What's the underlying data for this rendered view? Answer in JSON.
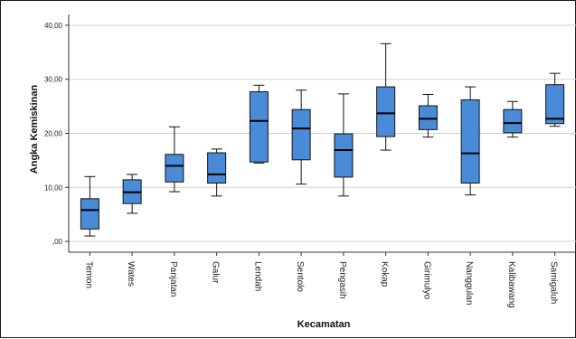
{
  "chart_data": {
    "type": "boxplot",
    "xlabel": "Kecamatan",
    "ylabel": "Angka Kemiskinan",
    "ylim": [
      -2,
      42
    ],
    "yticks": [
      0,
      10,
      20,
      30,
      40
    ],
    "ytick_labels": [
      ",00",
      "10,00",
      "20,00",
      "30,00",
      "40,00"
    ],
    "grid": true,
    "box_color": "#4a8bd8",
    "categories": [
      "Temon",
      "Wates",
      "Panjatan",
      "Galur",
      "Lendah",
      "Sentolo",
      "Pengasih",
      "Kokap",
      "Girimulyo",
      "Nanggulan",
      "Kalibawang",
      "Samigaluh"
    ],
    "boxes": [
      {
        "min": 1.0,
        "q1": 2.3,
        "median": 5.8,
        "q3": 7.9,
        "max": 12.0
      },
      {
        "min": 5.2,
        "q1": 7.0,
        "median": 9.1,
        "q3": 11.4,
        "max": 12.4
      },
      {
        "min": 9.2,
        "q1": 11.0,
        "median": 14.0,
        "q3": 16.1,
        "max": 21.2
      },
      {
        "min": 8.4,
        "q1": 10.8,
        "median": 12.4,
        "q3": 16.4,
        "max": 17.1
      },
      {
        "min": 14.5,
        "q1": 14.7,
        "median": 22.3,
        "q3": 27.7,
        "max": 28.9
      },
      {
        "min": 10.6,
        "q1": 15.1,
        "median": 20.9,
        "q3": 24.4,
        "max": 28.0
      },
      {
        "min": 8.4,
        "q1": 11.9,
        "median": 16.9,
        "q3": 19.9,
        "max": 27.3
      },
      {
        "min": 16.9,
        "q1": 19.4,
        "median": 23.7,
        "q3": 28.6,
        "max": 36.6
      },
      {
        "min": 19.3,
        "q1": 20.7,
        "median": 22.7,
        "q3": 25.1,
        "max": 27.2
      },
      {
        "min": 8.6,
        "q1": 10.8,
        "median": 16.3,
        "q3": 26.2,
        "max": 28.6
      },
      {
        "min": 19.3,
        "q1": 20.1,
        "median": 21.9,
        "q3": 24.4,
        "max": 25.9
      },
      {
        "min": 21.3,
        "q1": 21.8,
        "median": 22.7,
        "q3": 29.0,
        "max": 31.1
      }
    ]
  }
}
